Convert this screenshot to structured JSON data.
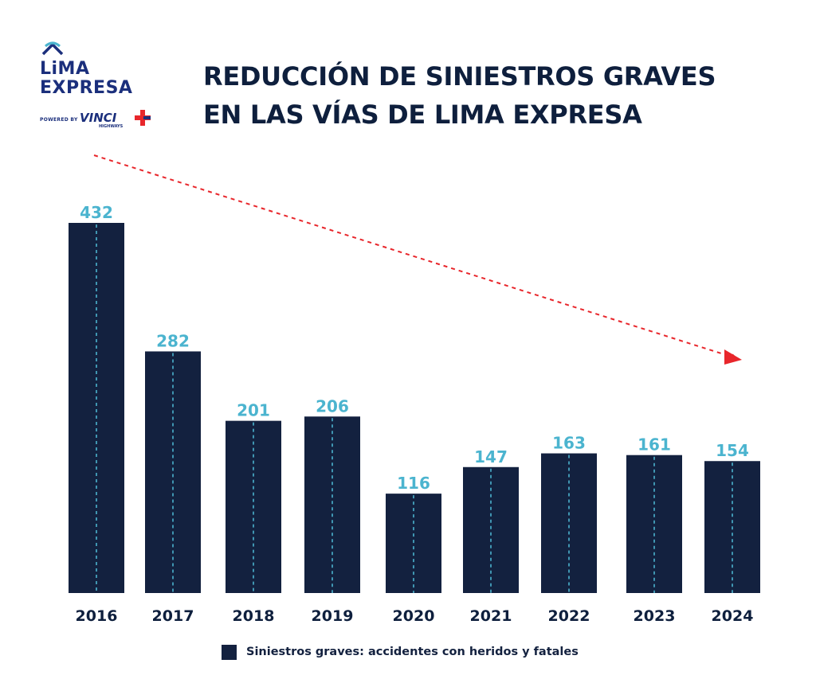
{
  "logo": {
    "line1": "LiMA",
    "line2": "EXPRESA",
    "powered_by": "POWERED BY",
    "brand": "VINCI",
    "brand_sub": "HIGHWAYS"
  },
  "title": {
    "line1": "REDUCCIÓN DE SINIESTROS GRAVES",
    "line2": "EN LAS VÍAS DE LIMA EXPRESA"
  },
  "colors": {
    "bar": "#13213f",
    "value_label": "#4bb4cf",
    "bar_dash": "#4bb4cf",
    "trend_arrow": "#e8262b",
    "text": "#0e1f3d",
    "logo": "#1b2f7c"
  },
  "chart_data": {
    "type": "bar",
    "title": "REDUCCIÓN DE SINIESTROS GRAVES EN LAS VÍAS DE LIMA EXPRESA",
    "categories": [
      "2016",
      "2017",
      "2018",
      "2019",
      "2020",
      "2021",
      "2022",
      "2023",
      "2024"
    ],
    "series": [
      {
        "name": "Siniestros graves: accidentes con heridos y fatales",
        "values": [
          432,
          282,
          201,
          206,
          116,
          147,
          163,
          161,
          154
        ]
      }
    ],
    "ylim": [
      0,
      432
    ],
    "grid": false,
    "legend": "bottom",
    "data_labels": true,
    "annotations": [
      "downward-trend-arrow"
    ]
  },
  "legend": {
    "label": "Siniestros graves: accidentes con heridos y fatales"
  }
}
